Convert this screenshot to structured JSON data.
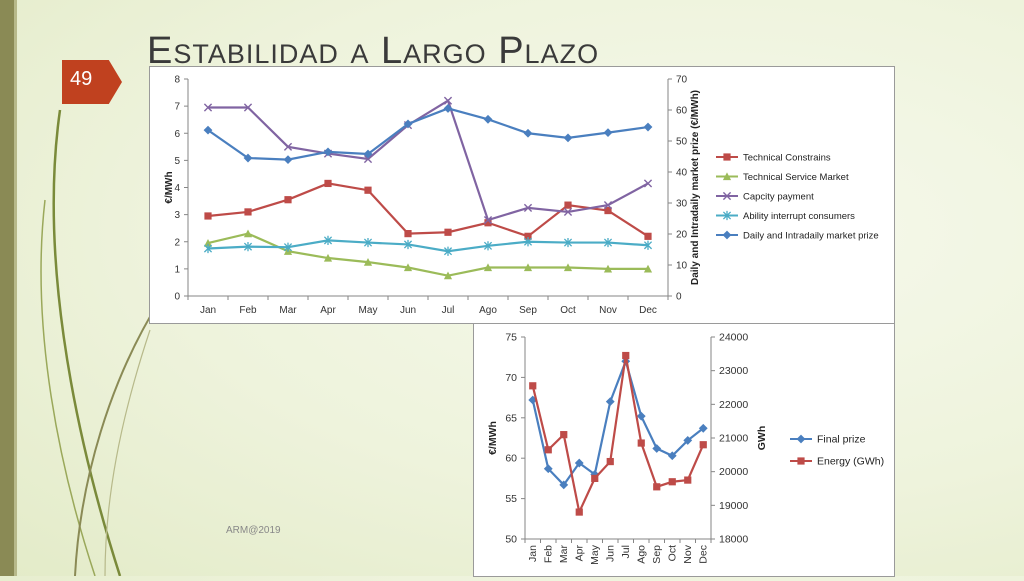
{
  "slide": {
    "title": "Estabilidad a Largo Plazo",
    "page_number": "49",
    "footer": "ARM@2019"
  },
  "colors": {
    "accent": "#c0411f",
    "blue": "#4a7fbf",
    "red": "#be4b48",
    "green": "#9bbb59",
    "purple": "#8064a2",
    "cyan": "#4bacc6"
  },
  "chart_data": [
    {
      "type": "line",
      "categories": [
        "Jan",
        "Feb",
        "Mar",
        "Apr",
        "May",
        "Jun",
        "Jul",
        "Ago",
        "Sep",
        "Oct",
        "Nov",
        "Dec"
      ],
      "ylabel": "€/MWh",
      "y2label": "Daily and Intradaily market prize (€/MWh)",
      "ylim": [
        0,
        8
      ],
      "y_ticks": [
        "0",
        "1",
        "2",
        "3",
        "4",
        "5",
        "6",
        "7",
        "8"
      ],
      "y2lim": [
        0,
        70
      ],
      "y2_ticks": [
        "0",
        "10",
        "20",
        "30",
        "40",
        "50",
        "60",
        "70"
      ],
      "legend_position": "right",
      "grid": false,
      "series": [
        {
          "name": "Technical Constrains",
          "axis": "left",
          "color": "#be4b48",
          "marker": "square",
          "values": [
            2.95,
            3.1,
            3.55,
            4.15,
            3.9,
            2.3,
            2.35,
            2.7,
            2.2,
            3.35,
            3.15,
            2.2
          ]
        },
        {
          "name": "Technical Service Market",
          "axis": "left",
          "color": "#9bbb59",
          "marker": "triangle",
          "values": [
            1.95,
            2.3,
            1.65,
            1.4,
            1.25,
            1.05,
            0.75,
            1.05,
            1.05,
            1.05,
            1.0,
            1.0
          ]
        },
        {
          "name": "Capcity payment",
          "axis": "left",
          "color": "#8064a2",
          "marker": "x",
          "values": [
            6.95,
            6.95,
            5.5,
            5.25,
            5.05,
            6.3,
            7.2,
            2.8,
            3.25,
            3.1,
            3.35,
            4.15
          ]
        },
        {
          "name": "Ability interrupt consumers",
          "axis": "left",
          "color": "#4bacc6",
          "marker": "star",
          "values": [
            1.75,
            1.82,
            1.8,
            2.05,
            1.97,
            1.9,
            1.65,
            1.85,
            2.0,
            1.97,
            1.97,
            1.87
          ]
        },
        {
          "name": "Daily and Intradaily market prize",
          "axis": "right",
          "color": "#4a7fbf",
          "marker": "diamond",
          "values": [
            53.5,
            44.5,
            44,
            46.5,
            45.8,
            55.5,
            60.5,
            57,
            52.5,
            51,
            52.7,
            54.5
          ]
        }
      ]
    },
    {
      "type": "line",
      "categories": [
        "Jan",
        "Feb",
        "Mar",
        "Apr",
        "May",
        "Jun",
        "Jul",
        "Ago",
        "Sep",
        "Oct",
        "Nov",
        "Dec"
      ],
      "ylabel": "€/MWh",
      "y2label": "GWh",
      "ylim": [
        50,
        75
      ],
      "y_ticks": [
        "50",
        "55",
        "60",
        "65",
        "70",
        "75"
      ],
      "y2lim": [
        18000,
        24000
      ],
      "y2_ticks": [
        "18000",
        "19000",
        "20000",
        "21000",
        "22000",
        "23000",
        "24000"
      ],
      "legend_position": "right",
      "grid": false,
      "series": [
        {
          "name": "Final prize",
          "axis": "left",
          "color": "#4a7fbf",
          "marker": "diamond",
          "values": [
            67.2,
            58.7,
            56.7,
            59.4,
            58.0,
            67.0,
            72.0,
            65.2,
            61.2,
            60.3,
            62.2,
            63.7
          ]
        },
        {
          "name": "Energy (GWh)",
          "axis": "right",
          "color": "#be4b48",
          "marker": "square",
          "values": [
            22550,
            20650,
            21100,
            18800,
            19800,
            20300,
            23450,
            20850,
            19550,
            19700,
            19750,
            20800
          ]
        }
      ]
    }
  ]
}
